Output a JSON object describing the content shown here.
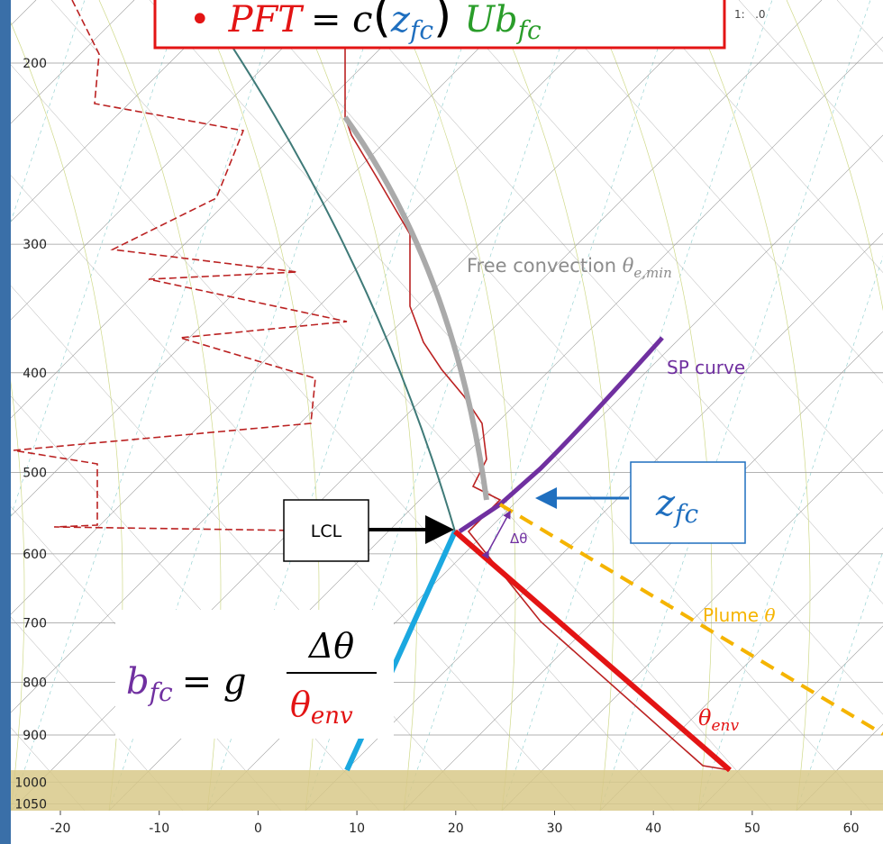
{
  "header": {
    "bullet": "•",
    "lhs": "PFT",
    "equals": "= c",
    "paren_open": "(",
    "z": "z",
    "z_sub": "fc",
    "paren_close": ")",
    "exponent": "U",
    "b": "b",
    "b_sub": "fc",
    "corner_note": "1:   .0"
  },
  "axes": {
    "pressure_labels": [
      200,
      300,
      400,
      500,
      600,
      700,
      800,
      900,
      1000,
      1050
    ],
    "temperature_labels": [
      -20,
      -10,
      0,
      10,
      20,
      30,
      40,
      50,
      60
    ]
  },
  "annotations": {
    "free_convection": "Free convection ",
    "free_convection_symbol": "θ",
    "free_convection_sub": "e,min",
    "sp_curve": "SP curve",
    "zfc": "z",
    "zfc_sub": "fc",
    "lcl": "LCL",
    "delta_theta": "Δθ",
    "plume": "Plume ",
    "plume_symbol": "θ",
    "theta_env": "θ",
    "theta_env_sub": "env"
  },
  "formula": {
    "b": "b",
    "b_sub": "fc",
    "equals": "= g",
    "numerator": "Δθ",
    "denominator": "θ",
    "denominator_sub": "env"
  }
}
